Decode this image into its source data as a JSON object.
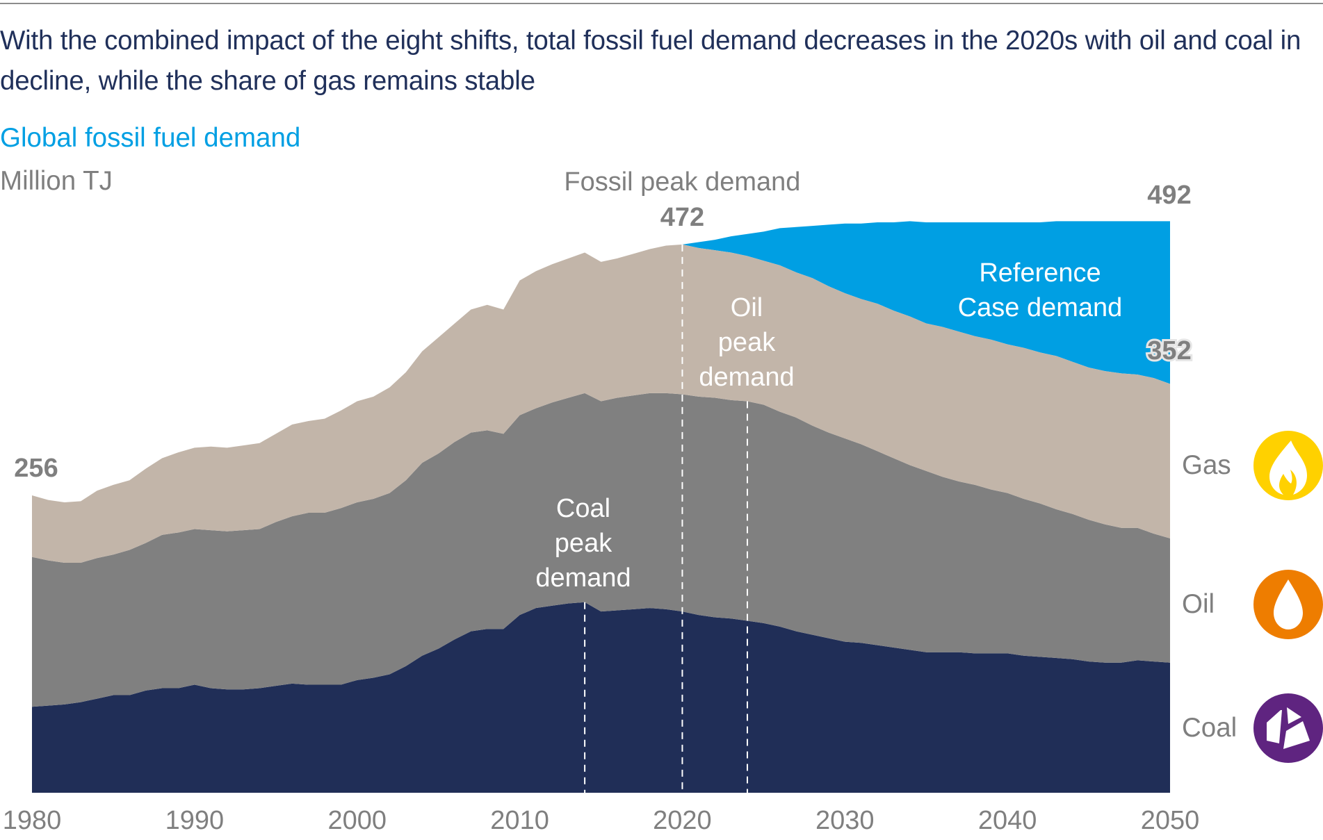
{
  "headline": "With the combined impact of the eight shifts, total fossil fuel demand decreases in the 2020s with oil and coal in decline, while the share of gas remains stable",
  "chart_title": "Global fossil fuel demand",
  "colors": {
    "coal": "#202e57",
    "oil": "#808080",
    "gas": "#c2b5a9",
    "reference": "#009fe3",
    "headline": "#20305a",
    "title": "#009fe3",
    "label_gray": "#7f7f7f",
    "gas_icon": "#ffd100",
    "oil_icon": "#ee7d00",
    "coal_icon": "#5f2480"
  },
  "chart_data": {
    "type": "area",
    "stacked": true,
    "title": "Global fossil fuel demand",
    "ylabel": "Million TJ",
    "xlabel": "",
    "xlim": [
      1980,
      2050
    ],
    "ylim": [
      0,
      500
    ],
    "grid": false,
    "x_ticks": [
      "1980",
      "1990",
      "2000",
      "2010",
      "2020",
      "2030",
      "2040",
      "2050"
    ],
    "x": [
      1980,
      1981,
      1982,
      1983,
      1984,
      1985,
      1986,
      1987,
      1988,
      1989,
      1990,
      1991,
      1992,
      1993,
      1994,
      1995,
      1996,
      1997,
      1998,
      1999,
      2000,
      2001,
      2002,
      2003,
      2004,
      2005,
      2006,
      2007,
      2008,
      2009,
      2010,
      2011,
      2012,
      2013,
      2014,
      2015,
      2016,
      2017,
      2018,
      2019,
      2020,
      2021,
      2022,
      2023,
      2024,
      2025,
      2026,
      2027,
      2028,
      2029,
      2030,
      2031,
      2032,
      2033,
      2034,
      2035,
      2036,
      2037,
      2038,
      2039,
      2040,
      2041,
      2042,
      2043,
      2044,
      2045,
      2046,
      2047,
      2048,
      2049,
      2050
    ],
    "series": [
      {
        "name": "Coal",
        "values": [
          74,
          75,
          76,
          78,
          81,
          84,
          84,
          88,
          90,
          90,
          93,
          90,
          89,
          89,
          90,
          92,
          94,
          93,
          93,
          93,
          97,
          99,
          102,
          109,
          118,
          124,
          132,
          139,
          141,
          141,
          153,
          159,
          161,
          163,
          164,
          156,
          157,
          158,
          159,
          158,
          156,
          153,
          151,
          150,
          148,
          146,
          143,
          139,
          136,
          133,
          130,
          129,
          127,
          125,
          123,
          121,
          121,
          121,
          120,
          120,
          120,
          118,
          117,
          116,
          115,
          113,
          112,
          112,
          114,
          113,
          112
        ]
      },
      {
        "name": "Oil",
        "values": [
          129,
          125,
          122,
          120,
          121,
          121,
          125,
          127,
          132,
          134,
          134,
          136,
          136,
          137,
          137,
          141,
          144,
          148,
          148,
          152,
          153,
          154,
          156,
          160,
          166,
          168,
          170,
          171,
          171,
          168,
          172,
          172,
          175,
          177,
          180,
          181,
          183,
          184,
          185,
          186,
          187,
          188,
          189,
          188,
          189,
          188,
          185,
          184,
          180,
          177,
          175,
          171,
          167,
          163,
          159,
          156,
          151,
          147,
          145,
          141,
          138,
          135,
          132,
          128,
          125,
          122,
          119,
          116,
          114,
          110,
          107
        ]
      },
      {
        "name": "Gas",
        "values": [
          53,
          52,
          52,
          53,
          58,
          60,
          60,
          64,
          66,
          69,
          70,
          72,
          72,
          73,
          74,
          76,
          79,
          79,
          81,
          84,
          87,
          88,
          91,
          93,
          96,
          100,
          102,
          106,
          108,
          107,
          116,
          118,
          119,
          120,
          121,
          120,
          120,
          122,
          124,
          127,
          129,
          128,
          127,
          127,
          125,
          124,
          126,
          125,
          127,
          126,
          125,
          125,
          127,
          127,
          128,
          127,
          129,
          129,
          128,
          129,
          128,
          130,
          130,
          132,
          131,
          131,
          132,
          133,
          132,
          134,
          133
        ]
      }
    ],
    "reference_case": {
      "name": "Reference Case demand",
      "x": [
        2020,
        2021,
        2022,
        2023,
        2024,
        2025,
        2026,
        2027,
        2028,
        2029,
        2030,
        2031,
        2032,
        2033,
        2034,
        2035,
        2036,
        2037,
        2038,
        2039,
        2040,
        2041,
        2042,
        2043,
        2044,
        2045,
        2046,
        2047,
        2048,
        2049,
        2050
      ],
      "values": [
        472,
        474,
        476,
        479,
        481,
        483,
        486,
        487,
        488,
        489,
        490,
        490,
        491,
        491,
        492,
        491,
        491,
        491,
        491,
        491,
        491,
        491,
        491,
        492,
        492,
        492,
        492,
        492,
        492,
        492,
        492
      ]
    },
    "data_labels": [
      {
        "text": "256",
        "x": 1980,
        "value": 256
      },
      {
        "text": "472",
        "x": 2020,
        "value": 472
      },
      {
        "text": "492",
        "x": 2050,
        "value": 492
      },
      {
        "text": "352",
        "x": 2050,
        "value": 352
      }
    ],
    "annotations": [
      {
        "id": "fossil_peak",
        "lines": [
          "Fossil peak demand"
        ],
        "year": 2020
      },
      {
        "id": "oil_peak",
        "lines": [
          "Oil",
          "peak",
          "demand"
        ],
        "year": 2024
      },
      {
        "id": "coal_peak",
        "lines": [
          "Coal",
          "peak",
          "demand"
        ],
        "year": 2014
      },
      {
        "id": "reference",
        "lines": [
          "Reference",
          "Case demand"
        ]
      }
    ],
    "legend": {
      "placement": "right",
      "items": [
        {
          "label": "Gas",
          "icon": "flame-icon"
        },
        {
          "label": "Oil",
          "icon": "oil-drop-icon"
        },
        {
          "label": "Coal",
          "icon": "coal-rock-icon"
        }
      ]
    }
  }
}
